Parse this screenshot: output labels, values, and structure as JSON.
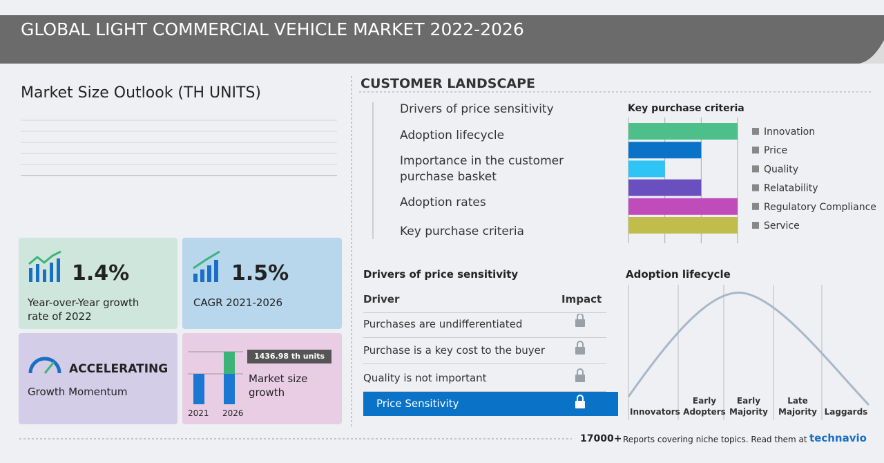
{
  "header": {
    "title": "GLOBAL LIGHT COMMERCIAL VEHICLE MARKET 2022-2026"
  },
  "market_size": {
    "title": "Market Size Outlook (TH UNITS)"
  },
  "cards": {
    "yoy": {
      "value": "1.4%",
      "label": "Year-over-Year growth rate of 2022"
    },
    "cagr": {
      "value": "1.5%",
      "label": "CAGR 2021-2026"
    },
    "momentum": {
      "value": "ACCELERATING",
      "label": "Growth Momentum"
    },
    "growth": {
      "badge": "1436.98 th units",
      "label": "Market size growth",
      "year_start": "2021",
      "year_end": "2026"
    }
  },
  "customer_landscape": {
    "title": "CUSTOMER LANDSCAPE",
    "items": [
      "Drivers of price sensitivity",
      "Adoption lifecycle",
      "Importance in the customer purchase basket",
      "Adoption rates",
      "Key purchase criteria"
    ]
  },
  "key_purchase_criteria": {
    "title": "Key purchase criteria",
    "categories": [
      "Innovation",
      "Price",
      "Quality",
      "Relatability",
      "Regulatory Compliance",
      "Service"
    ],
    "values": [
      3,
      2,
      1,
      2,
      3,
      3
    ],
    "colors": [
      "#4dbf8a",
      "#0a73c8",
      "#2ec4f5",
      "#6a4fbf",
      "#c04bbb",
      "#c1bd4c"
    ],
    "xlim": [
      0,
      3
    ],
    "xticks": [
      0,
      1,
      2,
      3
    ]
  },
  "drivers_table": {
    "title": "Drivers of price sensitivity",
    "header": [
      "Driver",
      "Impact"
    ],
    "rows": [
      "Purchases are undifferentiated",
      "Purchase is a key cost to the buyer",
      "Quality is not important",
      "Price Sensitivity"
    ]
  },
  "adoption_lifecycle": {
    "title": "Adoption lifecycle",
    "stages": [
      "Innovators",
      "Early Adopters",
      "Early Majority",
      "Late Majority",
      "Laggards"
    ]
  },
  "footer": {
    "count": "17000+",
    "text": "Reports covering niche topics. Read them at",
    "brand": "technavio"
  }
}
